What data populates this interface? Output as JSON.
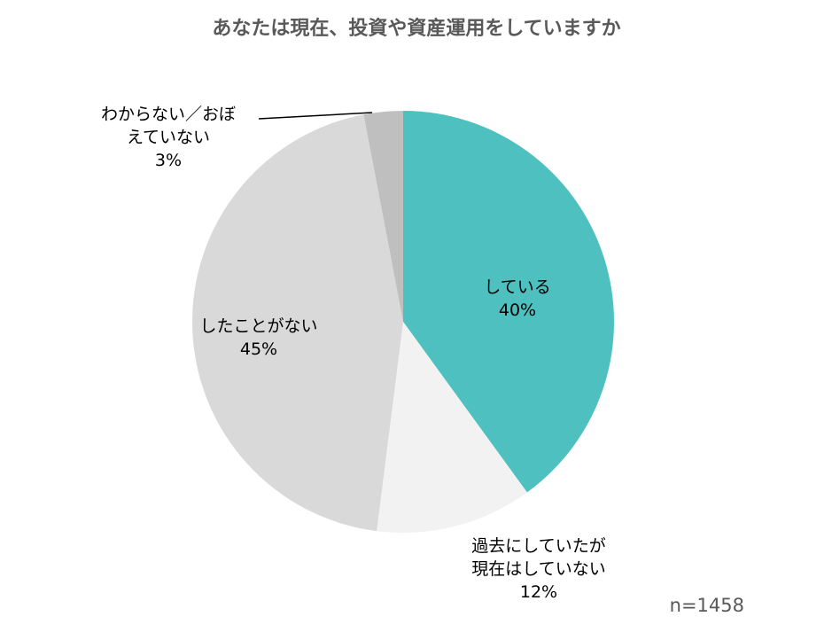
{
  "chart_data": {
    "type": "pie",
    "title": "あなたは現在、投資や資産運用をしていますか",
    "note": "n=1458",
    "slices": [
      {
        "label_lines": [
          "している"
        ],
        "percent_label": "40%",
        "value": 40,
        "color": "#4fc0c0"
      },
      {
        "label_lines": [
          "過去にしていたが",
          "現在はしていない"
        ],
        "percent_label": "12%",
        "value": 12,
        "color": "#f2f2f2"
      },
      {
        "label_lines": [
          "したことがない"
        ],
        "percent_label": "45%",
        "value": 45,
        "color": "#d9d9d9"
      },
      {
        "label_lines": [
          "わからない／おぼ",
          "えていない"
        ],
        "percent_label": "3%",
        "value": 3,
        "color": "#bfbfbf"
      }
    ]
  }
}
